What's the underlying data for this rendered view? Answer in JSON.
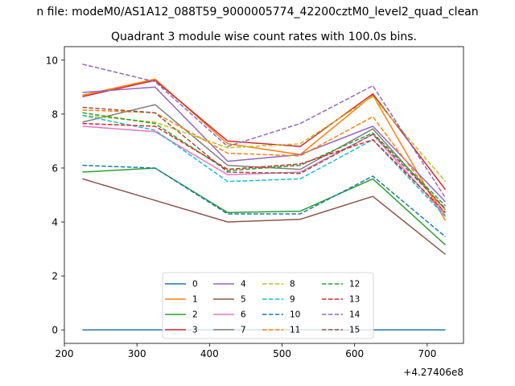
{
  "chart_data": {
    "type": "line",
    "suptitle": "n file: modeM0/AS1A12_088T59_9000005774_42200cztM0_level2_quad_clean",
    "title": "Quadrant 3 module wise count rates with 100.0s bins.",
    "xlabel": "",
    "ylabel": "",
    "x": [
      225,
      325,
      425,
      525,
      625,
      725
    ],
    "xlim": [
      200,
      750
    ],
    "ylim": [
      -0.5,
      10.5
    ],
    "xticks": [
      "200",
      "300",
      "400",
      "500",
      "600",
      "700"
    ],
    "yticks": [
      "0",
      "2",
      "4",
      "6",
      "8",
      "10"
    ],
    "offset_text": "+4.27406e8",
    "legend_position": "lower center",
    "series": [
      {
        "name": "0",
        "color": "#1f77b4",
        "dashed": false,
        "values": [
          0.0,
          0.0,
          0.0,
          0.0,
          0.0,
          0.0
        ]
      },
      {
        "name": "1",
        "color": "#ff7f0e",
        "dashed": false,
        "values": [
          8.7,
          9.3,
          6.9,
          6.5,
          8.7,
          4.05
        ]
      },
      {
        "name": "2",
        "color": "#2ca02c",
        "dashed": false,
        "values": [
          5.85,
          6.0,
          4.35,
          4.4,
          5.6,
          3.15
        ]
      },
      {
        "name": "3",
        "color": "#d62728",
        "dashed": false,
        "values": [
          8.65,
          9.25,
          7.0,
          6.8,
          8.75,
          5.2
        ]
      },
      {
        "name": "4",
        "color": "#9467bd",
        "dashed": false,
        "values": [
          8.8,
          9.0,
          6.25,
          6.5,
          7.55,
          4.75
        ]
      },
      {
        "name": "5",
        "color": "#8c564b",
        "dashed": false,
        "values": [
          5.6,
          4.8,
          4.0,
          4.1,
          4.95,
          2.8
        ]
      },
      {
        "name": "6",
        "color": "#e377c2",
        "dashed": false,
        "values": [
          7.55,
          7.35,
          5.75,
          5.85,
          7.25,
          4.25
        ]
      },
      {
        "name": "7",
        "color": "#7f7f7f",
        "dashed": false,
        "values": [
          7.7,
          8.35,
          6.1,
          5.95,
          7.45,
          4.45
        ]
      },
      {
        "name": "8",
        "color": "#bcbd22",
        "dashed": true,
        "values": [
          7.95,
          7.7,
          6.75,
          6.9,
          8.65,
          5.5
        ]
      },
      {
        "name": "9",
        "color": "#17becf",
        "dashed": true,
        "values": [
          7.95,
          7.4,
          5.5,
          5.6,
          7.05,
          4.2
        ]
      },
      {
        "name": "10",
        "color": "#1f77b4",
        "dashed": true,
        "values": [
          6.1,
          6.0,
          4.3,
          4.3,
          5.7,
          3.45
        ]
      },
      {
        "name": "11",
        "color": "#ff7f0e",
        "dashed": true,
        "values": [
          8.15,
          8.05,
          6.55,
          6.45,
          7.9,
          4.3
        ]
      },
      {
        "name": "12",
        "color": "#2ca02c",
        "dashed": true,
        "values": [
          8.05,
          7.65,
          5.9,
          6.1,
          7.3,
          4.6
        ]
      },
      {
        "name": "13",
        "color": "#d62728",
        "dashed": true,
        "values": [
          7.65,
          7.55,
          5.95,
          6.15,
          7.05,
          4.35
        ]
      },
      {
        "name": "14",
        "color": "#9467bd",
        "dashed": true,
        "values": [
          9.85,
          9.2,
          6.8,
          7.65,
          9.05,
          4.9
        ]
      },
      {
        "name": "15",
        "color": "#8c564b",
        "dashed": true,
        "values": [
          8.25,
          8.05,
          5.85,
          5.8,
          7.25,
          4.5
        ]
      }
    ]
  }
}
